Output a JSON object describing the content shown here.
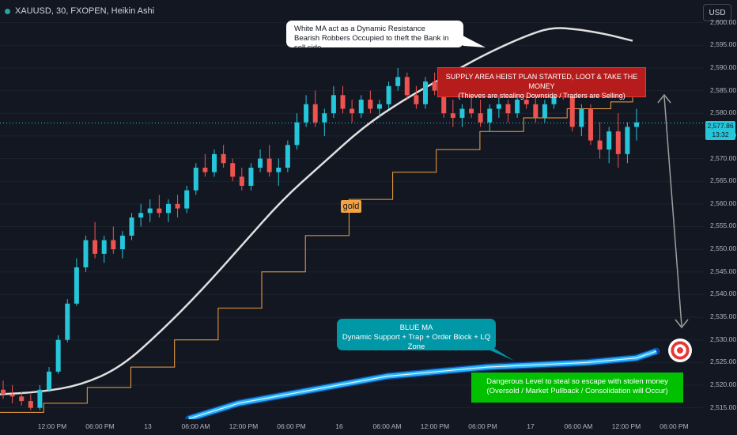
{
  "header": {
    "symbol_line": "XAUUSD, 30, FXOPEN, Heikin Ashi",
    "currency": "USD"
  },
  "colors": {
    "background": "#131722",
    "up_candle": "#26c6da",
    "down_candle": "#ef5350",
    "white_ma": "#e0e0e0",
    "blue_ma": "#29b6f6",
    "gold_line": "#f4a340",
    "current_price_line": "#26c6da"
  },
  "annotations": {
    "white_callout": [
      "White MA act as a Dynamic Resistance",
      "Bearish Robbers Occupied to theft the Bank in sell side"
    ],
    "red_box": [
      "SUPPLY AREA HEIST PLAN STARTED, LOOT & TAKE THE MONEY",
      "(Thieves are stealing Downside / Traders are Selling)"
    ],
    "blue_callout": [
      "BLUE MA",
      "Dynamic Support + Trap + Order Block + LQ Zone"
    ],
    "green_box": [
      "Dangerous Level to steal so escape with stolen money",
      "(Oversold / Market Pullback / Consolidation will Occur)"
    ],
    "gold_label": "gold",
    "target_icon": "target-icon"
  },
  "price_badge": {
    "price": "2,577.86",
    "countdown": "13:32"
  },
  "chart_data": {
    "type": "candlestick",
    "price_axis_ticks": [
      "2,600.00",
      "2,595.00",
      "2,590.00",
      "2,585.00",
      "2,580.00",
      "2,575.00",
      "2,570.00",
      "2,565.00",
      "2,560.00",
      "2,555.00",
      "2,550.00",
      "2,545.00",
      "2,540.00",
      "2,535.00",
      "2,530.00",
      "2,525.00",
      "2,520.00",
      "2,515.00"
    ],
    "time_axis_ticks": [
      "12:00 PM",
      "06:00 PM",
      "13",
      "06:00 AM",
      "12:00 PM",
      "06:00 PM",
      "16",
      "06:00 AM",
      "12:00 PM",
      "06:00 PM",
      "17",
      "06:00 AM",
      "12:00 PM",
      "06:00 PM"
    ],
    "ylim": [
      2512.5,
      2605.0
    ],
    "current_price": 2577.86,
    "white_ma": [
      [
        0,
        2518
      ],
      [
        30,
        2518.5
      ],
      [
        60,
        2520
      ],
      [
        90,
        2524
      ],
      [
        120,
        2532
      ],
      [
        150,
        2541
      ],
      [
        180,
        2551
      ],
      [
        210,
        2561
      ],
      [
        240,
        2569
      ],
      [
        270,
        2577
      ],
      [
        300,
        2583
      ],
      [
        330,
        2588
      ],
      [
        360,
        2593
      ],
      [
        390,
        2597
      ],
      [
        410,
        2599
      ],
      [
        430,
        2598.5
      ],
      [
        450,
        2597.5
      ],
      [
        470,
        2596
      ]
    ],
    "gold_ma": [
      [
        0,
        2514
      ],
      [
        40,
        2516
      ],
      [
        80,
        2519.5
      ],
      [
        120,
        2524
      ],
      [
        160,
        2530
      ],
      [
        200,
        2537
      ],
      [
        240,
        2545
      ],
      [
        280,
        2553
      ],
      [
        320,
        2561
      ],
      [
        360,
        2567
      ],
      [
        400,
        2572
      ],
      [
        440,
        2576
      ],
      [
        480,
        2579
      ],
      [
        520,
        2581
      ],
      [
        560,
        2582.5
      ],
      [
        580,
        2583.5
      ]
    ],
    "blue_ma": [
      [
        150,
        2512.6
      ],
      [
        200,
        2516
      ],
      [
        250,
        2518
      ],
      [
        300,
        2520
      ],
      [
        350,
        2522
      ],
      [
        400,
        2523
      ],
      [
        450,
        2524
      ],
      [
        500,
        2524.5
      ],
      [
        550,
        2525
      ],
      [
        600,
        2526
      ],
      [
        620,
        2527.5
      ]
    ],
    "candles": [
      [
        2519,
        2521,
        2517,
        2518
      ],
      [
        2518,
        2520,
        2516,
        2517.5
      ],
      [
        2517.5,
        2518.5,
        2515.5,
        2516.5
      ],
      [
        2516.5,
        2518,
        2514.5,
        2515
      ],
      [
        2515,
        2520,
        2514.5,
        2519
      ],
      [
        2519,
        2524,
        2518.5,
        2523
      ],
      [
        2523,
        2531,
        2522.5,
        2530
      ],
      [
        2530,
        2539,
        2529.5,
        2538
      ],
      [
        2538,
        2548,
        2537.5,
        2546
      ],
      [
        2546,
        2553,
        2545,
        2552
      ],
      [
        2552,
        2556,
        2548,
        2549
      ],
      [
        2549,
        2553,
        2547,
        2552
      ],
      [
        2552,
        2555,
        2549,
        2550
      ],
      [
        2550,
        2554,
        2548,
        2553
      ],
      [
        2553,
        2558,
        2552,
        2557
      ],
      [
        2557,
        2560,
        2555,
        2558
      ],
      [
        2558,
        2561,
        2556,
        2559
      ],
      [
        2559,
        2562,
        2557,
        2558
      ],
      [
        2558,
        2561,
        2556,
        2560
      ],
      [
        2560,
        2562,
        2557,
        2559
      ],
      [
        2559,
        2564,
        2558,
        2563
      ],
      [
        2563,
        2569,
        2562,
        2568
      ],
      [
        2568,
        2571,
        2566,
        2567
      ],
      [
        2567,
        2572,
        2566,
        2571
      ],
      [
        2571,
        2573,
        2568,
        2569
      ],
      [
        2569,
        2570,
        2565,
        2566
      ],
      [
        2566,
        2568,
        2563,
        2564
      ],
      [
        2564,
        2569,
        2563,
        2568
      ],
      [
        2568,
        2572,
        2567,
        2570
      ],
      [
        2570,
        2573,
        2566,
        2567
      ],
      [
        2567,
        2570,
        2564,
        2568
      ],
      [
        2568,
        2574,
        2567,
        2573
      ],
      [
        2573,
        2580,
        2572,
        2578
      ],
      [
        2578,
        2584,
        2577,
        2582
      ],
      [
        2582,
        2585,
        2577,
        2578
      ],
      [
        2578,
        2581,
        2575,
        2580
      ],
      [
        2580,
        2586,
        2579,
        2584
      ],
      [
        2584,
        2586,
        2580,
        2581
      ],
      [
        2581,
        2583,
        2578,
        2580
      ],
      [
        2580,
        2584,
        2579,
        2583
      ],
      [
        2583,
        2585,
        2580,
        2581
      ],
      [
        2581,
        2583,
        2579,
        2582
      ],
      [
        2582,
        2587,
        2581,
        2586
      ],
      [
        2586,
        2590,
        2585,
        2588
      ],
      [
        2588,
        2589,
        2583,
        2584
      ],
      [
        2584,
        2586,
        2581,
        2582
      ],
      [
        2582,
        2588,
        2581,
        2587
      ],
      [
        2587,
        2589,
        2584,
        2585
      ],
      [
        2585,
        2586,
        2579,
        2580
      ],
      [
        2580,
        2583,
        2577,
        2579
      ],
      [
        2579,
        2582,
        2577,
        2581
      ],
      [
        2581,
        2584,
        2579,
        2580
      ],
      [
        2580,
        2583,
        2577,
        2578
      ],
      [
        2578,
        2582,
        2576,
        2581
      ],
      [
        2581,
        2584,
        2579,
        2582
      ],
      [
        2582,
        2583,
        2578,
        2580
      ],
      [
        2580,
        2584,
        2579,
        2583
      ],
      [
        2583,
        2586,
        2581,
        2582
      ],
      [
        2582,
        2584,
        2578,
        2579
      ],
      [
        2579,
        2583,
        2578,
        2582
      ],
      [
        2582,
        2587,
        2581,
        2585
      ],
      [
        2585,
        2588,
        2583,
        2584
      ],
      [
        2584,
        2585,
        2576,
        2577
      ],
      [
        2577,
        2582,
        2575,
        2581
      ],
      [
        2581,
        2582,
        2573,
        2574
      ],
      [
        2574,
        2578,
        2570,
        2572
      ],
      [
        2572,
        2577,
        2569,
        2576
      ],
      [
        2576,
        2580,
        2568,
        2571
      ],
      [
        2571,
        2578,
        2569,
        2577
      ],
      [
        2577,
        2581,
        2574,
        2578
      ]
    ]
  }
}
